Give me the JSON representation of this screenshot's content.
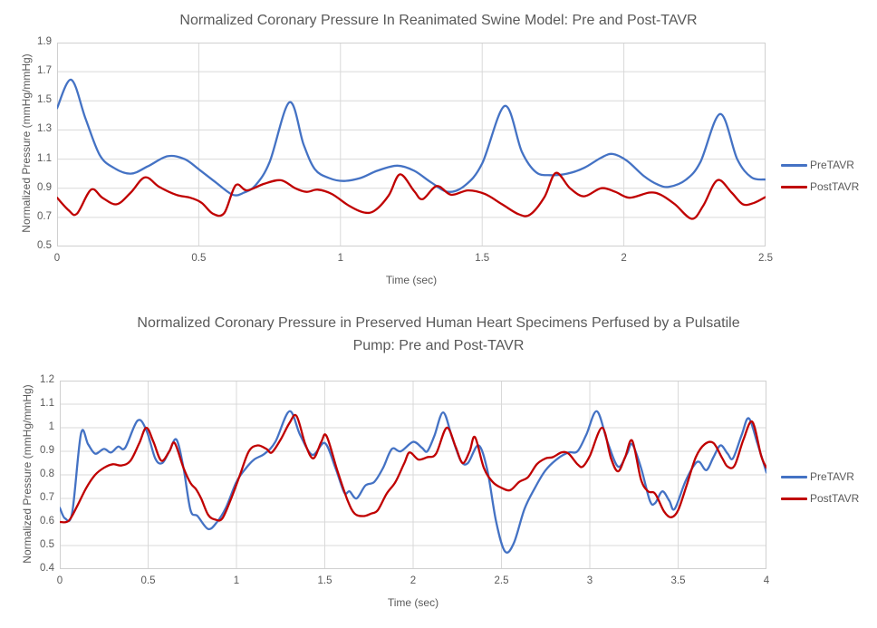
{
  "page": {
    "background": "#FFFFFF"
  },
  "colors": {
    "pre_tavr": "#4472C4",
    "post_tavr": "#C00000",
    "gridline": "#D9D9D9",
    "plot_border": "#D0D0D0",
    "text": "#595959"
  },
  "chart_data": [
    {
      "type": "line",
      "title": "Normalized Coronary Pressure In Reanimated Swine Model: Pre and Post-TAVR",
      "title_lines": [
        "Normalized Coronary Pressure In Reanimated Swine Model: Pre and Post-TAVR"
      ],
      "xlabel": "Time (sec)",
      "ylabel": "Normalized Pressure (mmHg/mmHg)",
      "xlim": [
        0,
        2.5
      ],
      "ylim": [
        0.5,
        1.9
      ],
      "xticks": [
        0,
        0.5,
        1,
        1.5,
        2,
        2.5
      ],
      "xtick_labels": [
        "0",
        "0.5",
        "1",
        "1.5",
        "2",
        "2.5"
      ],
      "yticks": [
        0.5,
        0.7,
        0.9,
        1.1,
        1.3,
        1.5,
        1.7,
        1.9
      ],
      "ytick_labels": [
        "0.5",
        "0.7",
        "0.9",
        "1.1",
        "1.3",
        "1.5",
        "1.7",
        "1.9"
      ],
      "grid": true,
      "legend_position": "right",
      "series": [
        {
          "name": "PreTAVR",
          "color": "#4472C4",
          "x": [
            0,
            0.05,
            0.1,
            0.15,
            0.2,
            0.26,
            0.32,
            0.39,
            0.45,
            0.5,
            0.56,
            0.62,
            0.66,
            0.7,
            0.75,
            0.82,
            0.87,
            0.91,
            0.96,
            1.01,
            1.07,
            1.13,
            1.2,
            1.26,
            1.32,
            1.38,
            1.44,
            1.5,
            1.58,
            1.64,
            1.69,
            1.74,
            1.8,
            1.86,
            1.92,
            1.96,
            2.01,
            2.07,
            2.12,
            2.16,
            2.22,
            2.27,
            2.34,
            2.4,
            2.45,
            2.5
          ],
          "y": [
            1.45,
            1.645,
            1.38,
            1.13,
            1.04,
            1.0,
            1.05,
            1.12,
            1.1,
            1.03,
            0.94,
            0.855,
            0.87,
            0.92,
            1.08,
            1.49,
            1.2,
            1.03,
            0.97,
            0.95,
            0.97,
            1.02,
            1.055,
            1.02,
            0.94,
            0.875,
            0.92,
            1.07,
            1.465,
            1.15,
            1.01,
            0.99,
            1.0,
            1.04,
            1.11,
            1.135,
            1.09,
            0.985,
            0.925,
            0.91,
            0.96,
            1.08,
            1.41,
            1.1,
            0.975,
            0.96
          ]
        },
        {
          "name": "PostTAVR",
          "color": "#C00000",
          "x": [
            0,
            0.04,
            0.07,
            0.12,
            0.16,
            0.21,
            0.26,
            0.31,
            0.36,
            0.42,
            0.47,
            0.51,
            0.55,
            0.59,
            0.63,
            0.67,
            0.73,
            0.79,
            0.84,
            0.88,
            0.92,
            0.97,
            1.03,
            1.08,
            1.12,
            1.17,
            1.21,
            1.26,
            1.29,
            1.34,
            1.39,
            1.45,
            1.51,
            1.57,
            1.63,
            1.67,
            1.72,
            1.76,
            1.81,
            1.86,
            1.92,
            1.97,
            2.02,
            2.09,
            2.13,
            2.18,
            2.24,
            2.28,
            2.33,
            2.38,
            2.42,
            2.46,
            2.5
          ],
          "y": [
            0.835,
            0.75,
            0.725,
            0.89,
            0.835,
            0.79,
            0.87,
            0.975,
            0.91,
            0.855,
            0.835,
            0.8,
            0.725,
            0.73,
            0.92,
            0.885,
            0.93,
            0.955,
            0.9,
            0.875,
            0.89,
            0.86,
            0.78,
            0.735,
            0.745,
            0.85,
            0.995,
            0.88,
            0.825,
            0.915,
            0.855,
            0.885,
            0.86,
            0.79,
            0.72,
            0.72,
            0.84,
            1.005,
            0.9,
            0.845,
            0.9,
            0.875,
            0.835,
            0.87,
            0.855,
            0.79,
            0.69,
            0.78,
            0.955,
            0.87,
            0.79,
            0.8,
            0.84
          ]
        }
      ]
    },
    {
      "type": "line",
      "title": "Normalized Coronary Pressure in Preserved Human Heart Specimens Perfused by a Pulsatile Pump: Pre and Post-TAVR",
      "title_lines": [
        "Normalized Coronary Pressure in Preserved Human Heart Specimens Perfused by a Pulsatile",
        "Pump: Pre and Post-TAVR"
      ],
      "xlabel": "Time (sec)",
      "ylabel": "Normalized Pressure (mmHg/mmHg)",
      "xlim": [
        0,
        4
      ],
      "ylim": [
        0.4,
        1.2
      ],
      "xticks": [
        0,
        0.5,
        1,
        1.5,
        2,
        2.5,
        3,
        3.5,
        4
      ],
      "xtick_labels": [
        "0",
        "0.5",
        "1",
        "1.5",
        "2",
        "2.5",
        "3",
        "3.5",
        "4"
      ],
      "yticks": [
        0.4,
        0.5,
        0.6,
        0.7,
        0.8,
        0.9,
        1.0,
        1.1,
        1.2
      ],
      "ytick_labels": [
        "0.4",
        "0.5",
        "0.6",
        "0.7",
        "0.8",
        "0.9",
        "1",
        "1.1",
        "1.2"
      ],
      "grid": true,
      "legend_position": "right",
      "series": [
        {
          "name": "PreTAVR",
          "color": "#4472C4",
          "x": [
            0,
            0.03,
            0.07,
            0.12,
            0.16,
            0.2,
            0.25,
            0.29,
            0.33,
            0.37,
            0.44,
            0.49,
            0.54,
            0.58,
            0.62,
            0.66,
            0.7,
            0.74,
            0.78,
            0.84,
            0.89,
            0.94,
            1.0,
            1.05,
            1.1,
            1.16,
            1.22,
            1.3,
            1.36,
            1.43,
            1.5,
            1.56,
            1.61,
            1.64,
            1.68,
            1.73,
            1.78,
            1.83,
            1.88,
            1.93,
            2.0,
            2.05,
            2.08,
            2.12,
            2.17,
            2.22,
            2.27,
            2.31,
            2.37,
            2.42,
            2.47,
            2.52,
            2.57,
            2.63,
            2.69,
            2.75,
            2.82,
            2.88,
            2.93,
            2.98,
            3.04,
            3.1,
            3.16,
            3.21,
            3.24,
            3.29,
            3.34,
            3.37,
            3.41,
            3.45,
            3.48,
            3.54,
            3.59,
            3.62,
            3.66,
            3.7,
            3.74,
            3.78,
            3.81,
            3.86,
            3.9,
            3.95,
            4.0
          ],
          "y": [
            0.66,
            0.615,
            0.64,
            0.975,
            0.93,
            0.89,
            0.91,
            0.895,
            0.92,
            0.915,
            1.03,
            0.99,
            0.87,
            0.85,
            0.9,
            0.95,
            0.83,
            0.65,
            0.625,
            0.57,
            0.6,
            0.66,
            0.77,
            0.825,
            0.865,
            0.89,
            0.94,
            1.07,
            0.97,
            0.885,
            0.935,
            0.83,
            0.725,
            0.73,
            0.7,
            0.755,
            0.77,
            0.83,
            0.91,
            0.9,
            0.94,
            0.915,
            0.9,
            0.965,
            1.065,
            0.96,
            0.86,
            0.85,
            0.925,
            0.82,
            0.6,
            0.475,
            0.51,
            0.655,
            0.745,
            0.82,
            0.87,
            0.895,
            0.9,
            0.97,
            1.07,
            0.94,
            0.835,
            0.89,
            0.93,
            0.83,
            0.69,
            0.68,
            0.73,
            0.69,
            0.655,
            0.77,
            0.84,
            0.855,
            0.82,
            0.875,
            0.925,
            0.89,
            0.87,
            0.97,
            1.04,
            0.93,
            0.81
          ]
        },
        {
          "name": "PostTAVR",
          "color": "#C00000",
          "x": [
            0,
            0.05,
            0.1,
            0.15,
            0.2,
            0.25,
            0.3,
            0.35,
            0.4,
            0.45,
            0.49,
            0.53,
            0.575,
            0.62,
            0.65,
            0.7,
            0.74,
            0.77,
            0.8,
            0.84,
            0.88,
            0.92,
            0.97,
            1.02,
            1.07,
            1.12,
            1.17,
            1.2,
            1.25,
            1.3,
            1.34,
            1.39,
            1.435,
            1.48,
            1.51,
            1.57,
            1.63,
            1.67,
            1.72,
            1.76,
            1.8,
            1.85,
            1.9,
            1.95,
            1.98,
            2.03,
            2.08,
            2.13,
            2.19,
            2.24,
            2.28,
            2.32,
            2.35,
            2.4,
            2.45,
            2.5,
            2.55,
            2.6,
            2.65,
            2.7,
            2.75,
            2.79,
            2.84,
            2.88,
            2.93,
            2.96,
            3.0,
            3.07,
            3.12,
            3.16,
            3.2,
            3.24,
            3.29,
            3.33,
            3.37,
            3.42,
            3.46,
            3.5,
            3.55,
            3.6,
            3.65,
            3.7,
            3.75,
            3.78,
            3.82,
            3.87,
            3.92,
            3.97,
            4.0
          ],
          "y": [
            0.6,
            0.605,
            0.67,
            0.745,
            0.8,
            0.83,
            0.845,
            0.84,
            0.86,
            0.935,
            1.0,
            0.94,
            0.86,
            0.9,
            0.935,
            0.83,
            0.765,
            0.74,
            0.7,
            0.63,
            0.61,
            0.615,
            0.7,
            0.8,
            0.9,
            0.925,
            0.91,
            0.895,
            0.95,
            1.02,
            1.05,
            0.93,
            0.87,
            0.94,
            0.965,
            0.82,
            0.69,
            0.635,
            0.625,
            0.635,
            0.65,
            0.72,
            0.77,
            0.85,
            0.895,
            0.865,
            0.875,
            0.89,
            1.0,
            0.92,
            0.85,
            0.9,
            0.96,
            0.83,
            0.77,
            0.745,
            0.735,
            0.77,
            0.79,
            0.845,
            0.87,
            0.875,
            0.895,
            0.89,
            0.845,
            0.835,
            0.88,
            1.0,
            0.87,
            0.815,
            0.875,
            0.945,
            0.78,
            0.73,
            0.72,
            0.645,
            0.62,
            0.65,
            0.76,
            0.875,
            0.93,
            0.935,
            0.87,
            0.835,
            0.84,
            0.95,
            1.025,
            0.88,
            0.83
          ]
        }
      ]
    }
  ]
}
